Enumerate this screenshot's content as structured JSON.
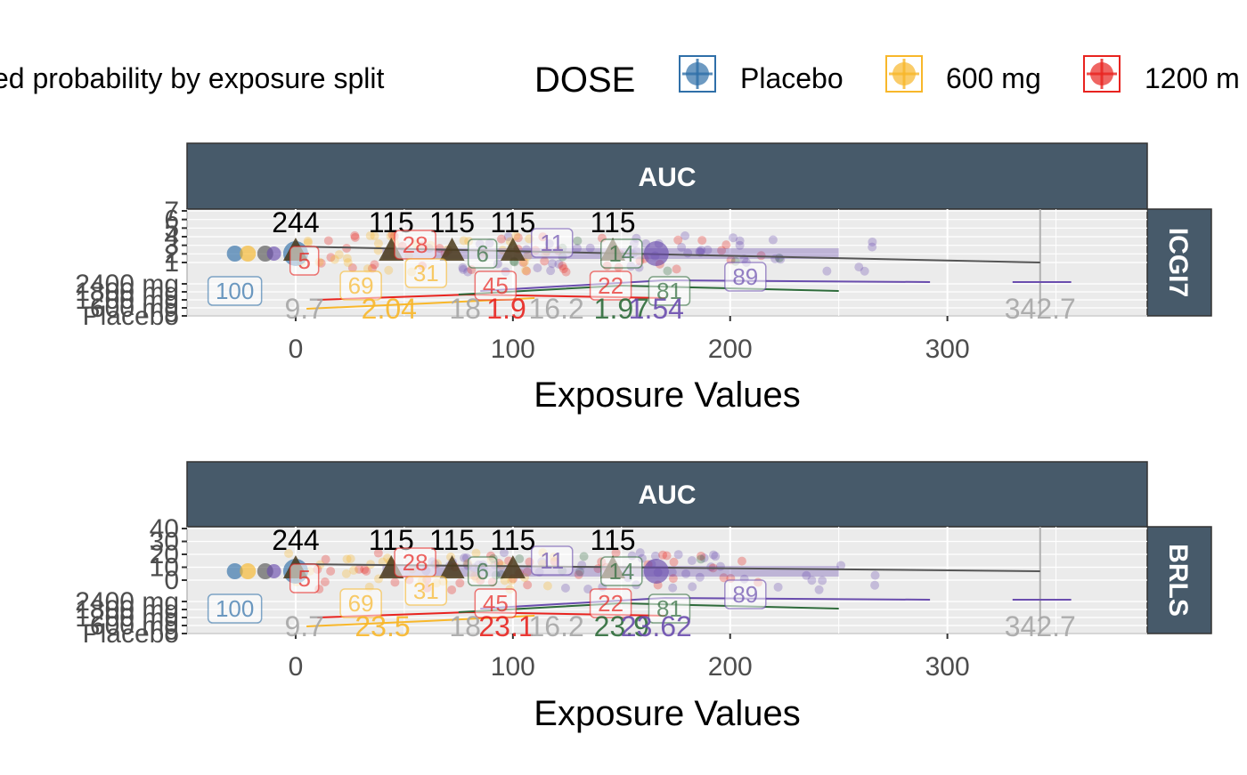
{
  "legend": {
    "left_text": "ed probability by exposure split",
    "title": "DOSE",
    "entries": [
      {
        "label": "Placebo",
        "color": "#2F6FA8"
      },
      {
        "label": "600 mg",
        "color": "#F8B72A"
      },
      {
        "label": "1200 m",
        "color": "#E8231F"
      }
    ]
  },
  "colors": {
    "strip": "#475A6A",
    "panel_bg": "#EBEBEB",
    "grid": "#FFFFFF",
    "axis_text": "#4D4D4D",
    "label_grey": "#A6A6A6",
    "placebo": "#2F6FA8",
    "d600": "#F8B72A",
    "d1200": "#E8231F",
    "d2400": "#6A4DAE",
    "green": "#2E6B3A",
    "dark_tri": "#4A3A1A"
  },
  "chart_data": [
    {
      "type": "scatter",
      "strip_top": "AUC",
      "strip_right": "ICGI7",
      "xlabel": "Exposure Values",
      "xlim": [
        -50,
        392
      ],
      "xticks": [
        0,
        100,
        200,
        300
      ],
      "yticks": [
        "7",
        "6",
        "5",
        "4",
        "3",
        "2",
        "1",
        "2400 mg",
        "1800 mg",
        "1200 mg",
        "600 mg",
        "Placebo"
      ],
      "count_labels": [
        {
          "x": 0,
          "text": "244"
        },
        {
          "x": 44,
          "text": "115"
        },
        {
          "x": 72,
          "text": "115"
        },
        {
          "x": 100,
          "text": "115"
        },
        {
          "x": 146,
          "text": "115"
        }
      ],
      "box_labels": [
        {
          "x": -28,
          "text": "100",
          "color": "#2F6FA8"
        },
        {
          "x": 30,
          "text": "69",
          "color": "#F8B72A"
        },
        {
          "x": 55,
          "text": "28",
          "color": "#E8231F"
        },
        {
          "x": 4,
          "text": "5",
          "color": "#E8231F"
        },
        {
          "x": 60,
          "text": "31",
          "color": "#F8B72A"
        },
        {
          "x": 86,
          "text": "6",
          "color": "#2E6B3A"
        },
        {
          "x": 92,
          "text": "45",
          "color": "#E8231F"
        },
        {
          "x": 118,
          "text": "11",
          "color": "#6A4DAE"
        },
        {
          "x": 145,
          "text": "22",
          "color": "#E8231F"
        },
        {
          "x": 150,
          "text": "14",
          "color": "#2E6B3A"
        },
        {
          "x": 172,
          "text": "81",
          "color": "#2E6B3A"
        },
        {
          "x": 207,
          "text": "89",
          "color": "#6A4DAE"
        }
      ],
      "bottom_labels": [
        {
          "x": 4,
          "text": "9.7",
          "color": "#A6A6A6"
        },
        {
          "x": 43,
          "text": "2.04",
          "color": "#F8B72A"
        },
        {
          "x": 78,
          "text": "18",
          "color": "#A6A6A6"
        },
        {
          "x": 97,
          "text": "1.9",
          "color": "#E8231F"
        },
        {
          "x": 120,
          "text": "16.2",
          "color": "#A6A6A6"
        },
        {
          "x": 150,
          "text": "1.97",
          "color": "#2E6B3A"
        },
        {
          "x": 166,
          "text": "1.54",
          "color": "#6A4DAE"
        },
        {
          "x": 342.7,
          "text": "342.7",
          "color": "#A6A6A6"
        }
      ]
    },
    {
      "type": "scatter",
      "strip_top": "AUC",
      "strip_right": "BRLS",
      "xlabel": "Exposure Values",
      "xlim": [
        -50,
        392
      ],
      "xticks": [
        0,
        100,
        200,
        300
      ],
      "yticks": [
        "40",
        "30",
        "20",
        "10",
        "0",
        "2400 mg",
        "1800 mg",
        "1200 mg",
        "600 mg",
        "Placebo"
      ],
      "count_labels": [
        {
          "x": 0,
          "text": "244"
        },
        {
          "x": 44,
          "text": "115"
        },
        {
          "x": 72,
          "text": "115"
        },
        {
          "x": 100,
          "text": "115"
        },
        {
          "x": 146,
          "text": "115"
        }
      ],
      "box_labels": [
        {
          "x": -28,
          "text": "100",
          "color": "#2F6FA8"
        },
        {
          "x": 30,
          "text": "69",
          "color": "#F8B72A"
        },
        {
          "x": 55,
          "text": "28",
          "color": "#E8231F"
        },
        {
          "x": 4,
          "text": "5",
          "color": "#E8231F"
        },
        {
          "x": 60,
          "text": "31",
          "color": "#F8B72A"
        },
        {
          "x": 86,
          "text": "6",
          "color": "#2E6B3A"
        },
        {
          "x": 92,
          "text": "45",
          "color": "#E8231F"
        },
        {
          "x": 118,
          "text": "11",
          "color": "#6A4DAE"
        },
        {
          "x": 145,
          "text": "22",
          "color": "#E8231F"
        },
        {
          "x": 150,
          "text": "14",
          "color": "#2E6B3A"
        },
        {
          "x": 172,
          "text": "81",
          "color": "#2E6B3A"
        },
        {
          "x": 207,
          "text": "89",
          "color": "#6A4DAE"
        }
      ],
      "bottom_labels": [
        {
          "x": 4,
          "text": "9.7",
          "color": "#A6A6A6"
        },
        {
          "x": 40,
          "text": "23.5",
          "color": "#F8B72A"
        },
        {
          "x": 78,
          "text": "18",
          "color": "#A6A6A6"
        },
        {
          "x": 97,
          "text": "23.1",
          "color": "#E8231F"
        },
        {
          "x": 120,
          "text": "16.2",
          "color": "#A6A6A6"
        },
        {
          "x": 150,
          "text": "23.9",
          "color": "#2E6B3A"
        },
        {
          "x": 166,
          "text": "23.62",
          "color": "#6A4DAE"
        },
        {
          "x": 342.7,
          "text": "342.7",
          "color": "#A6A6A6"
        }
      ]
    }
  ]
}
